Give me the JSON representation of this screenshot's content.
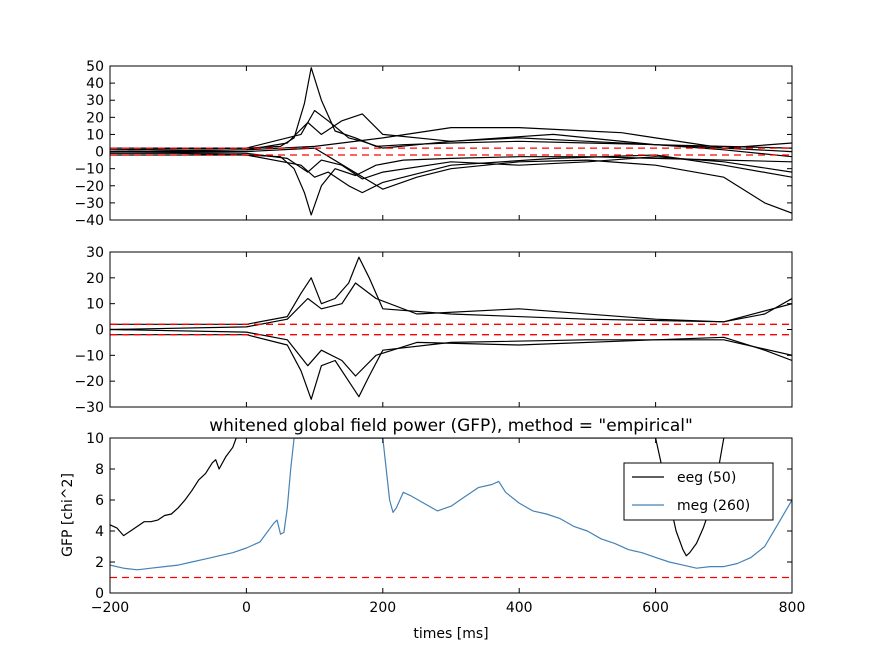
{
  "chart_data": [
    {
      "type": "line",
      "title": "",
      "xlabel": "",
      "ylabel": "",
      "xlim": [
        -200,
        800
      ],
      "ylim": [
        -40,
        50
      ],
      "yticks": [
        "50",
        "40",
        "30",
        "20",
        "10",
        "0",
        "−10",
        "−20",
        "−30",
        "−40"
      ],
      "grid": false,
      "reference_lines": [
        2,
        -2
      ],
      "reference_color": "#ff0000",
      "series_color": "#000000",
      "series": [
        {
          "x": [
            -200,
            -100,
            0,
            50,
            70,
            85,
            95,
            110,
            130,
            160,
            190,
            230,
            300,
            400,
            500,
            600,
            700,
            800
          ],
          "values": [
            1,
            1.5,
            2,
            3,
            8,
            28,
            49,
            30,
            12,
            8,
            3,
            4,
            5,
            6,
            5,
            4,
            3,
            2
          ]
        },
        {
          "x": [
            -200,
            -100,
            0,
            50,
            70,
            85,
            95,
            110,
            130,
            160,
            190,
            230,
            300,
            400,
            500,
            600,
            700,
            800
          ],
          "values": [
            -1,
            -1,
            -2,
            -3,
            -10,
            -24,
            -37,
            -20,
            -10,
            -14,
            -8,
            -5,
            -4,
            -3,
            -3,
            -4,
            -5,
            -6
          ]
        },
        {
          "x": [
            -200,
            0,
            100,
            200,
            300,
            400,
            500,
            550,
            600,
            650,
            700,
            800
          ],
          "values": [
            0,
            1,
            3,
            8,
            14,
            14,
            12,
            11,
            8,
            5,
            2,
            0
          ]
        },
        {
          "x": [
            -200,
            0,
            100,
            150,
            200,
            250,
            300,
            400,
            500,
            600,
            700,
            760,
            800
          ],
          "values": [
            0,
            0,
            2,
            -10,
            -22,
            -15,
            -10,
            -6,
            -5,
            -8,
            -15,
            -30,
            -36
          ]
        },
        {
          "x": [
            -200,
            0,
            80,
            100,
            120,
            150,
            170,
            200,
            300,
            450,
            600,
            700,
            800
          ],
          "values": [
            2,
            2,
            10,
            24,
            18,
            8,
            6,
            2,
            6,
            10,
            4,
            2,
            5
          ]
        },
        {
          "x": [
            -200,
            0,
            80,
            100,
            120,
            150,
            170,
            200,
            300,
            450,
            600,
            700,
            800
          ],
          "values": [
            -2,
            -2,
            -8,
            -15,
            -12,
            -20,
            -24,
            -18,
            -8,
            -4,
            -2,
            -8,
            -15
          ]
        },
        {
          "x": [
            -200,
            0,
            60,
            90,
            110,
            140,
            170,
            200,
            300,
            400,
            500,
            600,
            700,
            800
          ],
          "values": [
            0,
            1,
            5,
            17,
            10,
            18,
            22,
            10,
            6,
            8,
            6,
            4,
            1,
            -3
          ]
        },
        {
          "x": [
            -200,
            0,
            60,
            90,
            110,
            140,
            170,
            200,
            300,
            400,
            500,
            600,
            700,
            800
          ],
          "values": [
            0,
            -1,
            -4,
            -12,
            -5,
            -8,
            -16,
            -12,
            -6,
            -8,
            -6,
            -3,
            -6,
            -12
          ]
        }
      ]
    },
    {
      "type": "line",
      "title": "",
      "xlabel": "",
      "ylabel": "",
      "xlim": [
        -200,
        800
      ],
      "ylim": [
        -30,
        30
      ],
      "yticks": [
        "30",
        "20",
        "10",
        "0",
        "−10",
        "−20",
        "−30"
      ],
      "grid": false,
      "reference_lines": [
        2,
        -2
      ],
      "reference_color": "#ff0000",
      "series_color": "#000000",
      "series": [
        {
          "x": [
            -200,
            0,
            60,
            80,
            95,
            110,
            130,
            150,
            165,
            180,
            200,
            300,
            500,
            700,
            800
          ],
          "values": [
            2,
            2,
            5,
            14,
            20,
            10,
            12,
            18,
            28,
            20,
            8,
            6,
            4,
            3,
            10
          ]
        },
        {
          "x": [
            -200,
            0,
            60,
            80,
            95,
            110,
            130,
            150,
            165,
            180,
            200,
            300,
            500,
            700,
            800
          ],
          "values": [
            -2,
            -2,
            -6,
            -16,
            -27,
            -14,
            -12,
            -20,
            -26,
            -18,
            -8,
            -5,
            -4,
            -4,
            -10
          ]
        },
        {
          "x": [
            -200,
            0,
            60,
            90,
            110,
            140,
            160,
            190,
            250,
            400,
            600,
            700,
            760,
            800
          ],
          "values": [
            0,
            1,
            4,
            12,
            8,
            10,
            18,
            12,
            6,
            8,
            4,
            3,
            6,
            12
          ]
        },
        {
          "x": [
            -200,
            0,
            60,
            90,
            110,
            140,
            160,
            190,
            250,
            400,
            600,
            700,
            760,
            800
          ],
          "values": [
            0,
            -1,
            -4,
            -14,
            -8,
            -12,
            -18,
            -10,
            -5,
            -6,
            -4,
            -3,
            -8,
            -12
          ]
        }
      ]
    },
    {
      "type": "line",
      "title": "whitened global field power (GFP), method = \"empirical\"",
      "xlabel": "times [ms]",
      "ylabel": "GFP [chi^2]",
      "xlim": [
        -200,
        800
      ],
      "ylim": [
        0,
        10
      ],
      "xticks": [
        "−200",
        "0",
        "200",
        "400",
        "600",
        "800"
      ],
      "yticks": [
        "10",
        "8",
        "6",
        "4",
        "2",
        "0"
      ],
      "grid": false,
      "legend_position": "top-right",
      "reference_lines": [
        1
      ],
      "reference_color": "#ff0000",
      "series": [
        {
          "name": "eeg (50)",
          "color": "#000000",
          "x": [
            -200,
            -190,
            -180,
            -170,
            -160,
            -150,
            -140,
            -130,
            -120,
            -110,
            -100,
            -90,
            -80,
            -70,
            -60,
            -50,
            -45,
            -40,
            -30,
            -20,
            -15,
            600,
            610,
            620,
            630,
            640,
            645,
            650,
            660,
            670,
            680,
            690,
            700
          ],
          "values": [
            4.4,
            4.2,
            3.7,
            4.0,
            4.3,
            4.6,
            4.6,
            4.7,
            5.0,
            5.1,
            5.5,
            6.0,
            6.6,
            7.3,
            7.7,
            8.4,
            8.6,
            8.0,
            8.8,
            9.4,
            10.0,
            10.0,
            8.0,
            6.0,
            4.0,
            2.8,
            2.4,
            2.6,
            3.2,
            4.2,
            5.5,
            7.5,
            10.0
          ]
        },
        {
          "name": "meg (260)",
          "color": "#4682b4",
          "x": [
            -200,
            -180,
            -160,
            -140,
            -120,
            -100,
            -80,
            -60,
            -40,
            -20,
            0,
            20,
            40,
            45,
            50,
            55,
            60,
            65,
            70,
            72,
            200,
            205,
            210,
            215,
            220,
            230,
            240,
            260,
            280,
            300,
            320,
            340,
            360,
            370,
            380,
            400,
            420,
            440,
            460,
            480,
            500,
            520,
            540,
            560,
            580,
            600,
            620,
            640,
            660,
            680,
            700,
            720,
            740,
            760,
            780,
            800
          ],
          "values": [
            1.8,
            1.6,
            1.5,
            1.6,
            1.7,
            1.8,
            2.0,
            2.2,
            2.4,
            2.6,
            2.9,
            3.3,
            4.5,
            4.7,
            3.8,
            3.9,
            5.5,
            8.0,
            10.0,
            10.0,
            10.0,
            8.0,
            6.0,
            5.2,
            5.5,
            6.5,
            6.3,
            5.8,
            5.3,
            5.6,
            6.2,
            6.8,
            7.0,
            7.2,
            6.5,
            5.8,
            5.3,
            5.1,
            4.8,
            4.3,
            4.0,
            3.5,
            3.2,
            2.8,
            2.6,
            2.3,
            2.0,
            1.8,
            1.6,
            1.7,
            1.7,
            1.9,
            2.3,
            3.0,
            4.5,
            6.0
          ]
        }
      ]
    }
  ]
}
